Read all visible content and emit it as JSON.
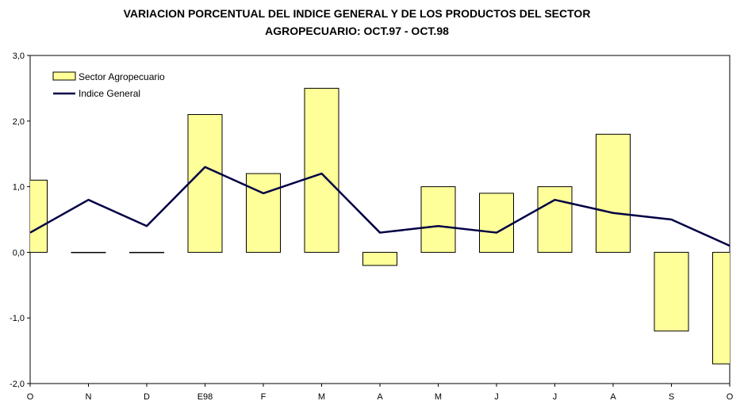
{
  "chart_data": {
    "type": "bar",
    "title_line1": "VARIACION PORCENTUAL DEL INDICE GENERAL Y DE LOS PRODUCTOS DEL SECTOR",
    "title_line2": "AGROPECUARIO: OCT.97 - OCT.98",
    "categories": [
      "O",
      "N",
      "D",
      "E98",
      "F",
      "M",
      "A",
      "M",
      "J",
      "J",
      "A",
      "S",
      "O"
    ],
    "ylim": [
      -2.0,
      3.0
    ],
    "yticks": [
      "-2,0",
      "-1,0",
      "0,0",
      "1,0",
      "2,0",
      "3,0"
    ],
    "grid": false,
    "legend_position": "top-left",
    "series": [
      {
        "name": "Sector Agropecuario",
        "type": "bar",
        "color": "#ffff99",
        "values": [
          1.1,
          0.0,
          0.0,
          2.1,
          1.2,
          2.5,
          -0.2,
          1.0,
          0.9,
          1.0,
          1.8,
          -1.2,
          -1.7
        ]
      },
      {
        "name": "Indice General",
        "type": "line",
        "color": "#000044",
        "values": [
          0.3,
          0.8,
          0.4,
          1.3,
          0.9,
          1.2,
          0.3,
          0.4,
          0.3,
          0.8,
          0.6,
          0.5,
          0.1
        ]
      }
    ]
  }
}
